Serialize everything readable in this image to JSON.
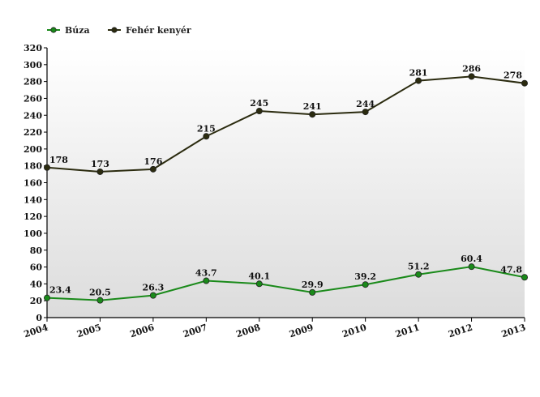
{
  "chart_data": {
    "type": "line",
    "x": [
      "2004",
      "2005",
      "2006",
      "2007",
      "2008",
      "2009",
      "2010",
      "2011",
      "2012",
      "2013"
    ],
    "ylim": [
      0,
      320
    ],
    "ytick_step": 20,
    "grid": false,
    "legend_placement": "top-left",
    "title": "",
    "xlabel": "",
    "ylabel": "",
    "series": [
      {
        "name": "Búza",
        "color": "#1a8a1a",
        "values": [
          23.4,
          20.5,
          26.3,
          43.7,
          40.1,
          29.9,
          39.2,
          51.2,
          60.4,
          47.8
        ]
      },
      {
        "name": "Fehér kenyér",
        "color": "#2b2b0f",
        "values": [
          178,
          173,
          176,
          215,
          245,
          241,
          244,
          281,
          286,
          278
        ]
      }
    ]
  }
}
